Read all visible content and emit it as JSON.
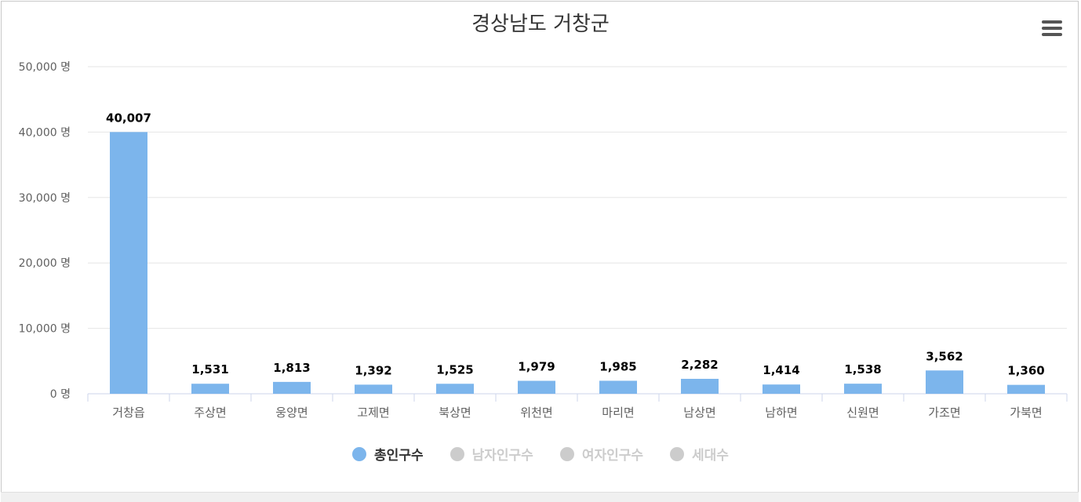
{
  "chart_data": {
    "type": "bar",
    "title": "경상남도 거창군",
    "categories": [
      "거창읍",
      "주상면",
      "웅양면",
      "고제면",
      "북상면",
      "위천면",
      "마리면",
      "남상면",
      "남하면",
      "신원면",
      "가조면",
      "가북면"
    ],
    "series": [
      {
        "name": "총인구수",
        "values": [
          40007,
          1531,
          1813,
          1392,
          1525,
          1979,
          1985,
          2282,
          1414,
          1538,
          3562,
          1360
        ],
        "color": "#7cb5ec"
      }
    ],
    "data_labels": [
      "40,007",
      "1,531",
      "1,813",
      "1,392",
      "1,525",
      "1,979",
      "1,985",
      "2,282",
      "1,414",
      "1,538",
      "3,562",
      "1,360"
    ],
    "ylim": [
      0,
      50000
    ],
    "yticks": [
      0,
      10000,
      20000,
      30000,
      40000,
      50000
    ],
    "ytick_labels": [
      "0 명",
      "10,000 명",
      "20,000 명",
      "30,000 명",
      "40,000 명",
      "50,000 명"
    ],
    "grid": true,
    "legend_position": "bottom-center"
  },
  "legend": {
    "items": [
      {
        "label": "총인구수",
        "color": "#7cb5ec",
        "active": true
      },
      {
        "label": "남자인구수",
        "color": "#cccccc",
        "active": false
      },
      {
        "label": "여자인구수",
        "color": "#cccccc",
        "active": false
      },
      {
        "label": "세대수",
        "color": "#cccccc",
        "active": false
      }
    ]
  },
  "toolbar": {
    "menu_icon": "hamburger-menu-icon"
  }
}
